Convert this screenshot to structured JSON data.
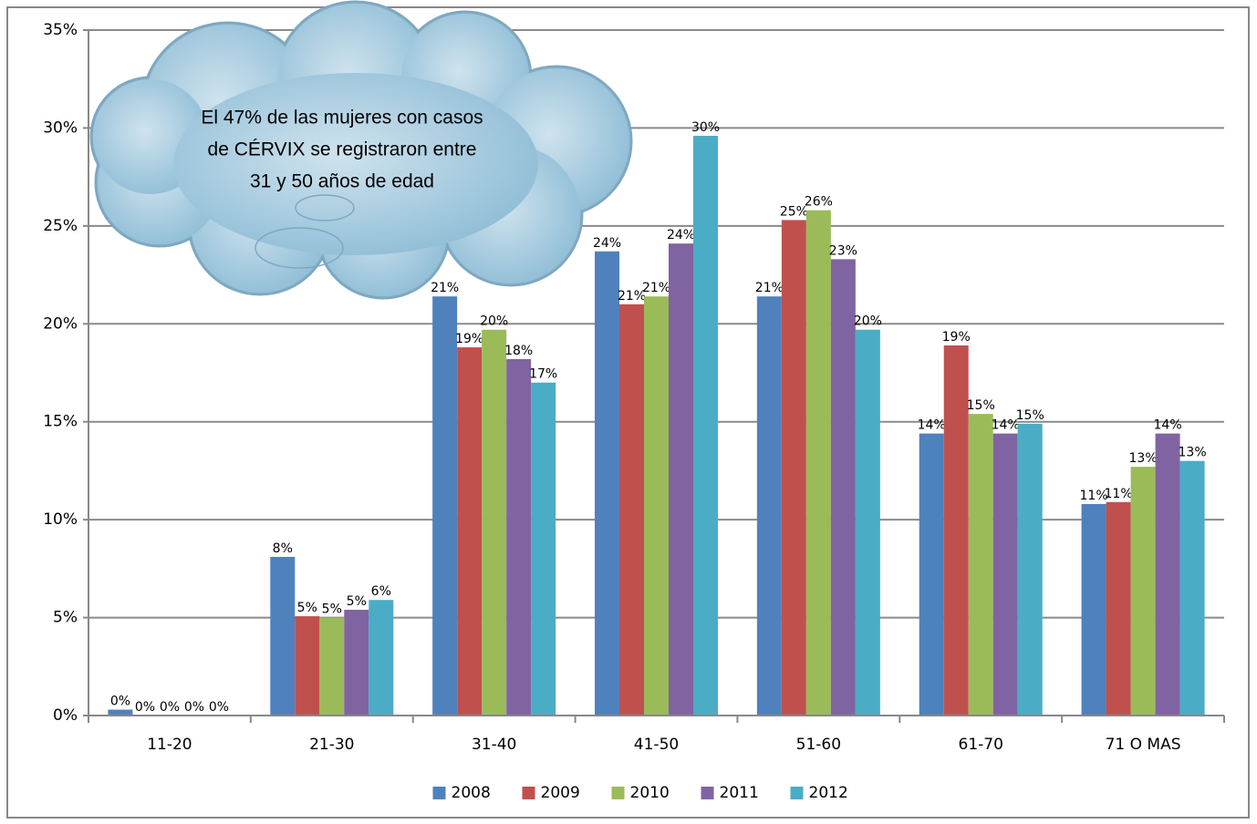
{
  "chart_data": {
    "type": "bar",
    "annotation": [
      "El 47% de las mujeres con casos",
      "de CÉRVIX se registraron entre",
      "31 y 50 años de edad"
    ],
    "categories": [
      "11-20",
      "21-30",
      "31-40",
      "41-50",
      "51-60",
      "61-70",
      "71 O MAS"
    ],
    "series": [
      {
        "name": "2008",
        "color": "#4f81bd",
        "values": [
          0.3,
          8.1,
          21.4,
          23.7,
          21.4,
          14.4,
          10.8
        ],
        "value_labels": [
          "0%",
          "8%",
          "21%",
          "24%",
          "21%",
          "14%",
          "11%"
        ]
      },
      {
        "name": "2009",
        "color": "#c0504d",
        "values": [
          0,
          5.07,
          18.8,
          21.0,
          25.3,
          18.9,
          10.9
        ],
        "value_labels": [
          "0%",
          "5%",
          "19%",
          "21%",
          "25%",
          "19%",
          "11%"
        ]
      },
      {
        "name": "2010",
        "color": "#9bbb59",
        "values": [
          0,
          5.0,
          19.7,
          21.4,
          25.8,
          15.4,
          12.7
        ],
        "value_labels": [
          "0%",
          "5%",
          "20%",
          "21%",
          "26%",
          "15%",
          "13%"
        ]
      },
      {
        "name": "2011",
        "color": "#8064a2",
        "values": [
          0,
          5.4,
          18.2,
          24.1,
          23.3,
          14.4,
          14.4
        ],
        "value_labels": [
          "0%",
          "5%",
          "18%",
          "24%",
          "23%",
          "14%",
          "14%"
        ]
      },
      {
        "name": "2012",
        "color": "#4bacc6",
        "values": [
          0,
          5.9,
          17.0,
          29.6,
          19.7,
          14.9,
          13.0
        ],
        "value_labels": [
          "0%",
          "6%",
          "17%",
          "30%",
          "20%",
          "15%",
          "13%"
        ]
      }
    ],
    "ylim": [
      0,
      35
    ],
    "yticks": [
      {
        "value": 0,
        "label": "0%"
      },
      {
        "value": 5,
        "label": "5%"
      },
      {
        "value": 10,
        "label": "10%"
      },
      {
        "value": 15,
        "label": "15%"
      },
      {
        "value": 20,
        "label": "20%"
      },
      {
        "value": 25,
        "label": "25%"
      },
      {
        "value": 30,
        "label": "30%"
      },
      {
        "value": 35,
        "label": "35%"
      }
    ],
    "grid": true,
    "legend": "bottom"
  }
}
